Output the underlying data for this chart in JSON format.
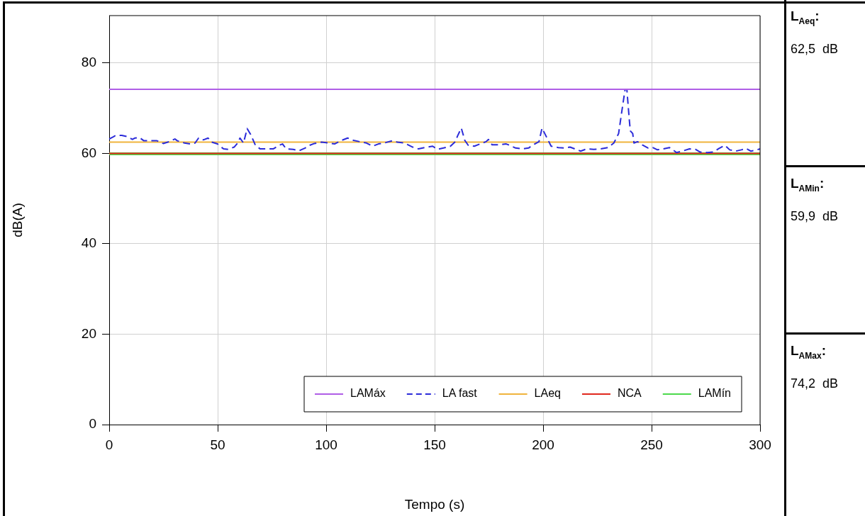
{
  "chart_data": {
    "type": "line",
    "xlabel": "Tempo (s)",
    "ylabel": "dB(A)",
    "xlim": [
      0,
      300
    ],
    "xticks": [
      0,
      50,
      100,
      150,
      200,
      250,
      300
    ],
    "ylim": [
      0,
      90.5
    ],
    "yticks": [
      0,
      20,
      40,
      60,
      80
    ],
    "grid": true,
    "legend": "bottom right",
    "marker": "none",
    "line_style": "solid",
    "series": [
      {
        "name": "LAMáx",
        "color": "#b05ee6",
        "x": [
          0,
          300
        ],
        "values": [
          74.2,
          74.2
        ]
      },
      {
        "name": "LA fast",
        "color": "#2b2bd9",
        "line_style": "dashed",
        "x": [
          0,
          2,
          3,
          5.8,
          8.5,
          10.7,
          11.8,
          14,
          16,
          19.3,
          22,
          24.9,
          27,
          30.3,
          31.4,
          34.7,
          37.4,
          39.6,
          41.2,
          43.4,
          45.6,
          47.2,
          49.9,
          52.7,
          54.9,
          57.6,
          59.2,
          60.3,
          61.9,
          63.6,
          65.2,
          67.4,
          69.6,
          72.8,
          75.6,
          78.3,
          79.9,
          81.6,
          84.8,
          87.5,
          90.3,
          92.4,
          94.6,
          97.9,
          101.2,
          103.9,
          107.2,
          109.9,
          112.6,
          115.4,
          118.6,
          121.4,
          124.1,
          127.4,
          130.6,
          132.8,
          136.1,
          139.9,
          142.6,
          146.4,
          149.1,
          151.3,
          154.1,
          157.3,
          159.5,
          160.6,
          162.3,
          163.9,
          165.5,
          168.3,
          171,
          173.7,
          174.8,
          176.5,
          179.7,
          183,
          184.6,
          187.3,
          190.6,
          193.3,
          195.5,
          198.1,
          199.5,
          201.5,
          203.7,
          207,
          210.2,
          212.4,
          215.2,
          217.3,
          220,
          223.3,
          226.6,
          229.9,
          232.6,
          234.8,
          236.4,
          237.8,
          238.6,
          239.7,
          240.2,
          241.3,
          241.9,
          243.5,
          245.7,
          248.4,
          250.5,
          252.7,
          255.5,
          258.2,
          259.8,
          261.5,
          264.7,
          267.5,
          270.2,
          272.4,
          275.7,
          278.4,
          281.1,
          283.8,
          286,
          288.7,
          291.4,
          293.6,
          295.8,
          298.6,
          300
        ],
        "values": [
          63.2,
          63.7,
          64.0,
          64.0,
          63.7,
          63.1,
          63.4,
          63.5,
          62.8,
          62.8,
          62.8,
          62.2,
          62.5,
          63.2,
          62.8,
          62.3,
          62.1,
          62.3,
          63.4,
          63.0,
          63.4,
          62.5,
          62.1,
          61.0,
          60.9,
          61.4,
          62.3,
          63.4,
          62.3,
          65.5,
          64.2,
          61.8,
          61.0,
          61.0,
          61.0,
          61.8,
          62.1,
          61.0,
          60.9,
          60.6,
          61.2,
          61.8,
          62.2,
          62.5,
          62.3,
          62.1,
          62.9,
          63.4,
          62.9,
          62.6,
          62.3,
          61.6,
          62.1,
          62.4,
          62.8,
          62.5,
          62.3,
          61.4,
          61.0,
          61.4,
          61.6,
          60.9,
          61.2,
          61.6,
          62.6,
          63.9,
          65.6,
          62.9,
          61.8,
          61.6,
          62.1,
          62.6,
          63.1,
          61.9,
          61.9,
          62.1,
          61.8,
          61.2,
          61.0,
          61.2,
          61.9,
          62.6,
          65.6,
          63.7,
          61.6,
          61.3,
          61.2,
          61.4,
          60.9,
          60.5,
          61.0,
          60.9,
          61.0,
          61.3,
          62.3,
          64.4,
          69.7,
          74.2,
          74.2,
          67.6,
          65.0,
          64.4,
          62.3,
          62.6,
          61.9,
          61.2,
          61.3,
          60.8,
          61.0,
          61.3,
          60.8,
          60.2,
          60.6,
          61.0,
          60.9,
          60.3,
          60.2,
          60.3,
          61.1,
          61.8,
          60.8,
          60.5,
          60.8,
          61.1,
          60.5,
          60.8,
          61.0
        ]
      },
      {
        "name": "LAeq",
        "color": "#f0b43c",
        "x": [
          0,
          300
        ],
        "values": [
          62.5,
          62.5
        ]
      },
      {
        "name": "NCA",
        "color": "#e0281e",
        "x": [
          0,
          300
        ],
        "values": [
          60,
          60
        ]
      },
      {
        "name": "LAMín",
        "color": "#4cd94c",
        "x": [
          0,
          300
        ],
        "values": [
          59.9,
          59.9
        ]
      }
    ],
    "annotations": [
      "L$_{Aeq}$:",
      "62,5  dB",
      "L$_{AMin}$:",
      "59,9  dB",
      "L$_{AMax}$:",
      "74,2  dB"
    ]
  }
}
